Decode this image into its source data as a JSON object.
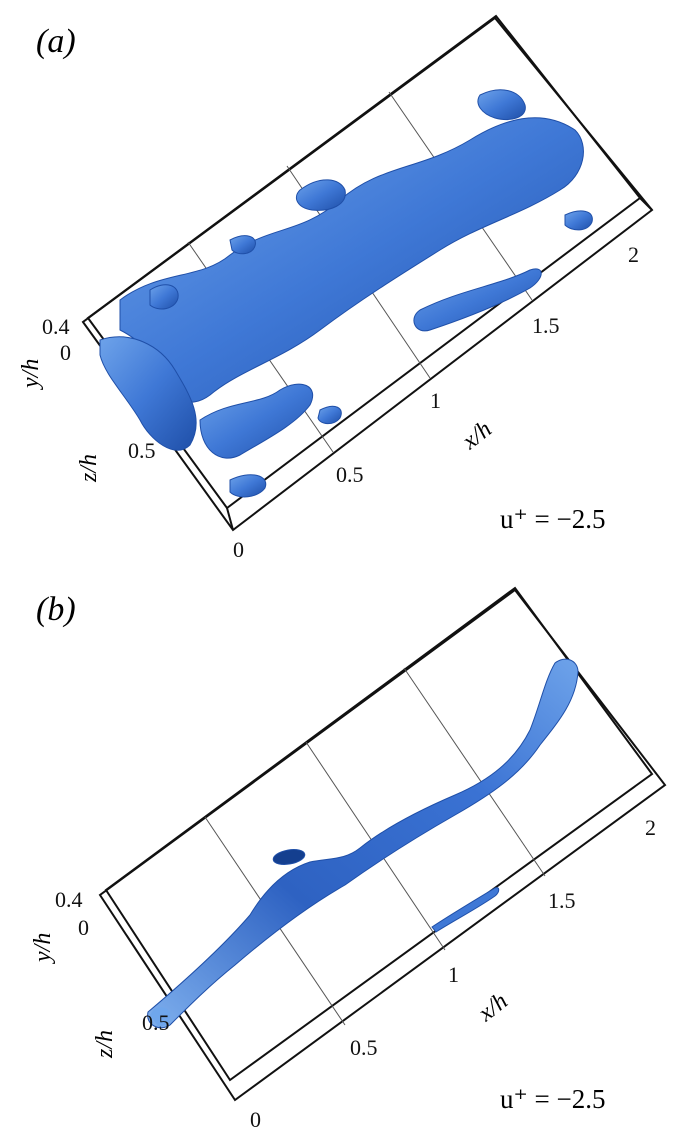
{
  "panels": [
    {
      "label": "(a)",
      "iso_label": "u⁺ = −2.5",
      "axes": {
        "x": {
          "label": "x/h",
          "ticks": [
            "0",
            "0.5",
            "1",
            "1.5",
            "2"
          ]
        },
        "z": {
          "label": "z/h",
          "ticks": [
            "0.5"
          ]
        },
        "y": {
          "label": "y/h",
          "ticks": [
            "0.4",
            "0"
          ]
        }
      }
    },
    {
      "label": "(b)",
      "iso_label": "u⁺ = −2.5",
      "axes": {
        "x": {
          "label": "x/h",
          "ticks": [
            "0",
            "0.5",
            "1",
            "1.5",
            "2"
          ]
        },
        "z": {
          "label": "z/h",
          "ticks": [
            "0.5"
          ]
        },
        "y": {
          "label": "y/h",
          "ticks": [
            "0.4",
            "0"
          ]
        }
      }
    }
  ],
  "colors": {
    "surface": "#3f78d6",
    "surface_dark": "#1f4fa8",
    "surface_light": "#7fb0ee",
    "box": "#111111",
    "grid": "#555555"
  }
}
